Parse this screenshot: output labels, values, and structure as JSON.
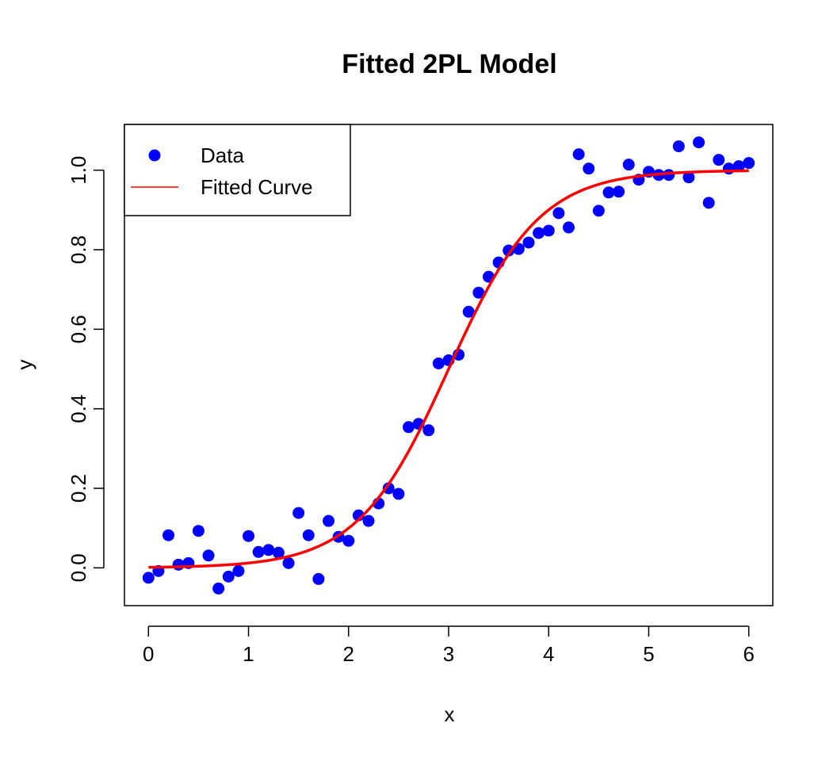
{
  "chart_data": {
    "type": "scatter",
    "title": "Fitted 2PL Model",
    "xlabel": "x",
    "ylabel": "y",
    "xlim": [
      -0.24,
      6.24
    ],
    "ylim": [
      -0.095,
      1.115
    ],
    "xticks": [
      "0",
      "1",
      "2",
      "3",
      "4",
      "5",
      "6"
    ],
    "yticks": [
      "0.0",
      "0.2",
      "0.4",
      "0.6",
      "0.8",
      "1.0"
    ],
    "grid": false,
    "legend": {
      "position": "top-left",
      "entries": [
        {
          "label": "Data",
          "kind": "point",
          "color": "#0000ff"
        },
        {
          "label": "Fitted Curve",
          "kind": "line",
          "color": "#ff0000"
        }
      ]
    },
    "series": [
      {
        "name": "Data",
        "kind": "points",
        "color": "#0000ff",
        "x": [
          0.0,
          0.1,
          0.2,
          0.3,
          0.4,
          0.5,
          0.6,
          0.7,
          0.8,
          0.9,
          1.0,
          1.1,
          1.2,
          1.3,
          1.4,
          1.5,
          1.6,
          1.7,
          1.8,
          1.9,
          2.0,
          2.1,
          2.2,
          2.3,
          2.4,
          2.5,
          2.6,
          2.7,
          2.8,
          2.9,
          3.0,
          3.1,
          3.2,
          3.3,
          3.4,
          3.5,
          3.6,
          3.7,
          3.8,
          3.9,
          4.0,
          4.1,
          4.2,
          4.3,
          4.4,
          4.5,
          4.6,
          4.7,
          4.8,
          4.9,
          5.0,
          5.1,
          5.2,
          5.3,
          5.4,
          5.5,
          5.6,
          5.7,
          5.8,
          5.9,
          6.0
        ],
        "y": [
          -0.025,
          -0.008,
          0.082,
          0.008,
          0.012,
          0.093,
          0.031,
          -0.052,
          -0.022,
          -0.008,
          0.08,
          0.04,
          0.045,
          0.038,
          0.012,
          0.138,
          0.082,
          -0.028,
          0.118,
          0.078,
          0.068,
          0.132,
          0.118,
          0.162,
          0.2,
          0.186,
          0.354,
          0.362,
          0.346,
          0.514,
          0.522,
          0.536,
          0.644,
          0.692,
          0.732,
          0.768,
          0.798,
          0.802,
          0.818,
          0.842,
          0.848,
          0.892,
          0.856,
          1.04,
          1.004,
          0.898,
          0.944,
          0.946,
          1.014,
          0.976,
          0.996,
          0.988,
          0.988,
          1.06,
          0.982,
          1.07,
          0.918,
          1.026,
          1.004,
          1.01,
          1.018
        ]
      },
      {
        "name": "Fitted Curve",
        "kind": "line",
        "color": "#ff0000",
        "model": "2PL",
        "a": 2.2,
        "b": 3.0
      }
    ]
  }
}
